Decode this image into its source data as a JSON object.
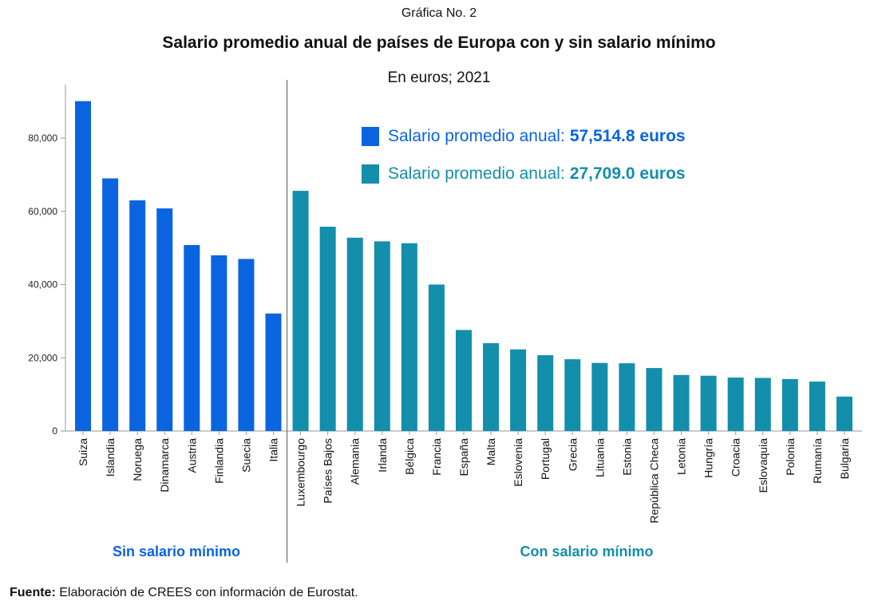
{
  "figure_label": "Gráfica No. 2",
  "colors": {
    "sin": "#0a64e0",
    "con": "#138eab"
  },
  "legend": [
    {
      "label": "Salario promedio anual:",
      "value": "57,514.8 euros"
    },
    {
      "label": "Salario promedio anual:",
      "value": "27,709.0 euros"
    }
  ],
  "group_labels": [
    "Sin salario mínimo",
    "Con salario mínimo"
  ],
  "source": {
    "prefix": "Fuente:",
    "text": "Elaboración de CREES con información de Eurostat."
  },
  "chart_data": {
    "type": "bar",
    "title": "Salario promedio anual de países de Europa con y sin salario mínimo",
    "subtitle": "En euros; 2021",
    "xlabel": "",
    "ylabel": "",
    "ylim": [
      0,
      92000
    ],
    "yticks": [
      0,
      20000,
      40000,
      60000,
      80000
    ],
    "ytick_labels": [
      "0",
      "20,000",
      "40,000",
      "60,000",
      "80,000"
    ],
    "categories": [
      "Suiza",
      "Islandia",
      "Noruega",
      "Dinamarca",
      "Austria",
      "Finlandia",
      "Suecia",
      "Italia",
      "Luxembourgo",
      "Países Bajos",
      "Alemania",
      "Irlanda",
      "Bélgica",
      "Francia",
      "España",
      "Malta",
      "Eslovenia",
      "Portugal",
      "Grecia",
      "Lituania",
      "Estonia",
      "República Checa",
      "Letonia",
      "Hungría",
      "Croacia",
      "Eslovaquia",
      "Polonia",
      "Rumanía",
      "Bulgaria"
    ],
    "series": [
      {
        "name": "Sin salario mínimo",
        "values": [
          90100,
          69000,
          63000,
          60800,
          50800,
          48000,
          47000,
          32100,
          null,
          null,
          null,
          null,
          null,
          null,
          null,
          null,
          null,
          null,
          null,
          null,
          null,
          null,
          null,
          null,
          null,
          null,
          null,
          null,
          null
        ]
      },
      {
        "name": "Con salario mínimo",
        "values": [
          null,
          null,
          null,
          null,
          null,
          null,
          null,
          null,
          65600,
          55800,
          52800,
          51800,
          51300,
          40000,
          27600,
          24000,
          22300,
          20700,
          19600,
          18600,
          18500,
          17200,
          15300,
          15100,
          14600,
          14500,
          14200,
          13500,
          9400
        ]
      }
    ]
  }
}
